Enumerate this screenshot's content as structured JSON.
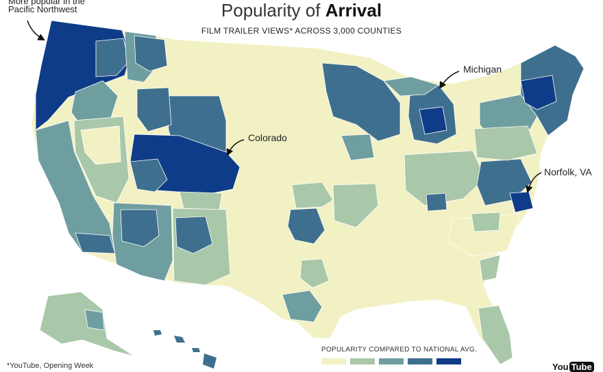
{
  "title": {
    "prefix": "Popularity of",
    "film": "Arrival"
  },
  "subtitle": "FILM TRAILER VIEWS* ACROSS 3,000 COUNTIES",
  "annotations": {
    "pnw_line1": "More popular in the",
    "pnw_line2": "Pacific Northwest",
    "michigan": "Michigan",
    "colorado": "Colorado",
    "norfolk": "Norfolk, VA"
  },
  "legend": {
    "title": "POPULARITY COMPARED TO NATIONAL AVG.",
    "colors": [
      "#f2f1c4",
      "#a9c7a9",
      "#6f9ea0",
      "#3f6f8e",
      "#0e3c88"
    ]
  },
  "footnote": "*YouTube, Opening Week",
  "brand": {
    "you": "You",
    "tube": "Tube"
  },
  "palette": {
    "lowest": "#f2f1c4",
    "low": "#a9c7a9",
    "mid": "#6f9ea0",
    "high": "#3f6f8e",
    "highest": "#0e3c88",
    "border": "#ffffff"
  }
}
